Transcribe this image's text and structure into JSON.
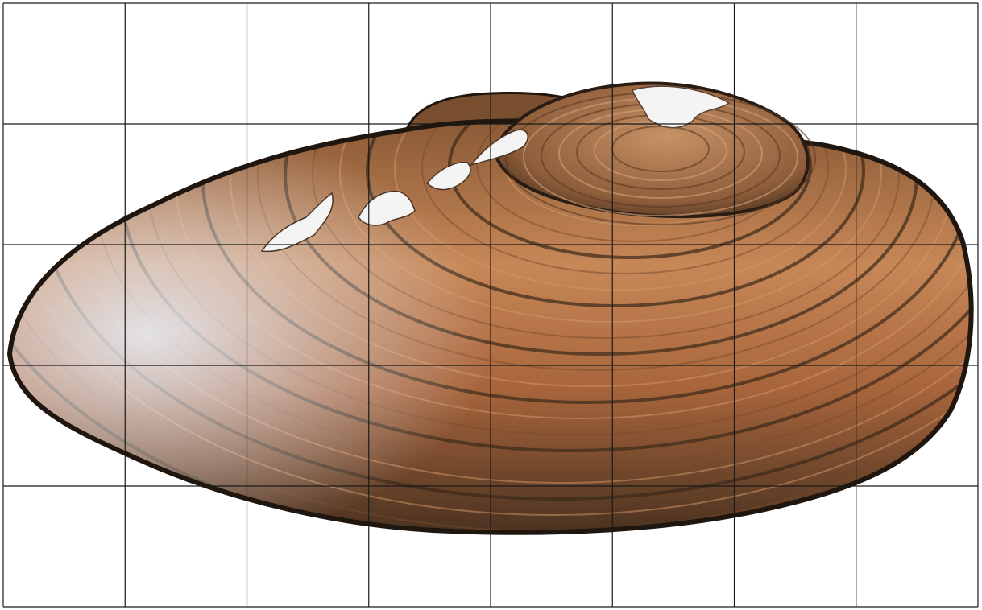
{
  "figure": {
    "subject": "freshwater-mussel-shell",
    "grid": {
      "columns": 8,
      "rows": 5,
      "line_color": "#1a1a1a"
    },
    "colors": {
      "background": "#ffffff",
      "shell_dark": "#3b2a1a",
      "shell_mid": "#9a5f38",
      "shell_light": "#d39a6a",
      "highlight": "#e8eef8",
      "outline": "#1f1610",
      "umbo_patch": "#f4f4f4"
    }
  }
}
